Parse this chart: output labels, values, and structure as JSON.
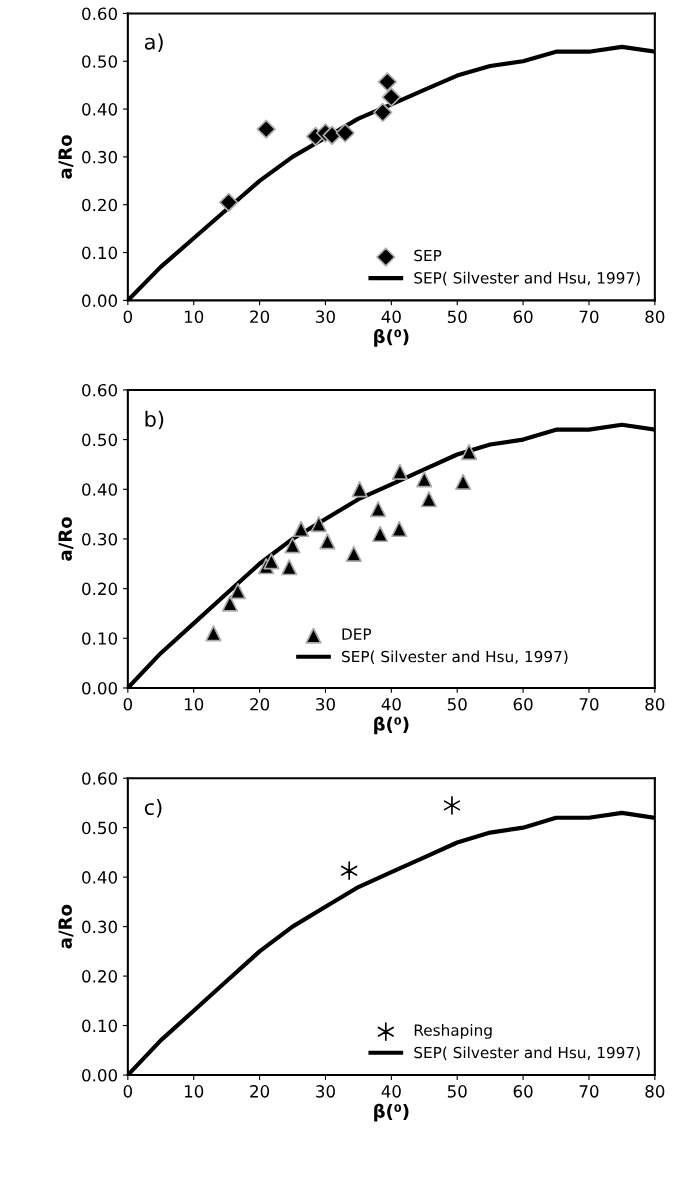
{
  "chart_data": [
    {
      "type": "scatter",
      "xlabel": "β(⁰)",
      "ylabel": "a/Ro",
      "annotations": [
        "a)"
      ],
      "legend": "bottom right",
      "xlim": [
        0,
        80
      ],
      "ylim": [
        0,
        0.6
      ],
      "xticks": [
        0,
        10,
        20,
        30,
        40,
        50,
        60,
        70,
        80
      ],
      "yticks": [
        {
          "value": 0,
          "label": "0.00"
        },
        {
          "value": 0.1,
          "label": "0.10"
        },
        {
          "value": 0.2,
          "label": "0.20"
        },
        {
          "value": 0.3,
          "label": "0.30"
        },
        {
          "value": 0.4,
          "label": "0.40"
        },
        {
          "value": 0.5,
          "label": "0.50"
        },
        {
          "value": 0.6,
          "label": "0.60"
        }
      ],
      "series": [
        {
          "name": "SEP",
          "marker": "diamond",
          "color": "#000000",
          "x": [
            15.3,
            21,
            28.5,
            30,
            31,
            33,
            38.7,
            39.4,
            40
          ],
          "values": [
            0.205,
            0.358,
            0.343,
            0.35,
            0.345,
            0.35,
            0.393,
            0.457,
            0.425
          ]
        },
        {
          "name": "SEP( Silvester and Hsu, 1997)",
          "type": "line",
          "marker": "none",
          "line_style": "solid",
          "color": "#000000",
          "x": [
            0,
            5,
            10,
            15,
            20,
            25,
            30,
            35,
            40,
            45,
            50,
            55,
            60,
            65,
            70,
            75,
            80
          ],
          "values": [
            0,
            0.07,
            0.13,
            0.19,
            0.25,
            0.3,
            0.34,
            0.38,
            0.41,
            0.44,
            0.47,
            0.49,
            0.5,
            0.52,
            0.52,
            0.53,
            0.52
          ]
        }
      ]
    },
    {
      "type": "scatter",
      "xlabel": "β(⁰)",
      "ylabel": "a/Ro",
      "annotations": [
        "b)"
      ],
      "legend": "bottom",
      "xlim": [
        0,
        80
      ],
      "ylim": [
        0,
        0.6
      ],
      "xticks": [
        0,
        10,
        20,
        30,
        40,
        50,
        60,
        70,
        80
      ],
      "yticks": [
        {
          "value": 0,
          "label": "0.00"
        },
        {
          "value": 0.1,
          "label": "0.10"
        },
        {
          "value": 0.2,
          "label": "0.20"
        },
        {
          "value": 0.3,
          "label": "0.30"
        },
        {
          "value": 0.4,
          "label": "0.40"
        },
        {
          "value": 0.5,
          "label": "0.50"
        },
        {
          "value": 0.6,
          "label": "0.60"
        }
      ],
      "series": [
        {
          "name": "DEP",
          "marker": "triangle",
          "color": "#000000",
          "x": [
            13,
            15.5,
            16.7,
            21,
            21.8,
            24.5,
            25,
            26.3,
            29,
            30.3,
            34.3,
            35.2,
            38,
            38.3,
            41.3,
            41.2,
            45,
            45.7,
            50.9,
            51.8
          ],
          "values": [
            0.11,
            0.17,
            0.195,
            0.245,
            0.255,
            0.243,
            0.287,
            0.32,
            0.33,
            0.295,
            0.27,
            0.4,
            0.36,
            0.31,
            0.435,
            0.32,
            0.42,
            0.38,
            0.415,
            0.475
          ]
        },
        {
          "name": "SEP( Silvester and Hsu, 1997)",
          "type": "line",
          "marker": "none",
          "line_style": "solid",
          "color": "#000000",
          "x": [
            0,
            5,
            10,
            15,
            20,
            25,
            30,
            35,
            40,
            45,
            50,
            55,
            60,
            65,
            70,
            75,
            80
          ],
          "values": [
            0,
            0.07,
            0.13,
            0.19,
            0.25,
            0.3,
            0.34,
            0.38,
            0.41,
            0.44,
            0.47,
            0.49,
            0.5,
            0.52,
            0.52,
            0.53,
            0.52
          ]
        }
      ]
    },
    {
      "type": "scatter",
      "xlabel": "β(⁰)",
      "ylabel": "a/Ro",
      "annotations": [
        "c)"
      ],
      "legend": "bottom right",
      "xlim": [
        0,
        80
      ],
      "ylim": [
        0,
        0.6
      ],
      "xticks": [
        0,
        10,
        20,
        30,
        40,
        50,
        60,
        70,
        80
      ],
      "yticks": [
        {
          "value": 0,
          "label": "0.00"
        },
        {
          "value": 0.1,
          "label": "0.10"
        },
        {
          "value": 0.2,
          "label": "0.20"
        },
        {
          "value": 0.3,
          "label": "0.30"
        },
        {
          "value": 0.4,
          "label": "0.40"
        },
        {
          "value": 0.5,
          "label": "0.50"
        },
        {
          "value": 0.6,
          "label": "0.60"
        }
      ],
      "series": [
        {
          "name": "Reshaping",
          "marker": "cross",
          "color": "#000000",
          "x": [
            33.6,
            49.2
          ],
          "values": [
            0.413,
            0.545
          ]
        },
        {
          "name": "SEP( Silvester and Hsu, 1997)",
          "type": "line",
          "marker": "none",
          "line_style": "solid",
          "color": "#000000",
          "x": [
            0,
            5,
            10,
            15,
            20,
            25,
            30,
            35,
            40,
            45,
            50,
            55,
            60,
            65,
            70,
            75,
            80
          ],
          "values": [
            0,
            0.07,
            0.13,
            0.19,
            0.25,
            0.3,
            0.34,
            0.38,
            0.41,
            0.44,
            0.47,
            0.49,
            0.5,
            0.52,
            0.52,
            0.53,
            0.52
          ]
        }
      ]
    }
  ]
}
